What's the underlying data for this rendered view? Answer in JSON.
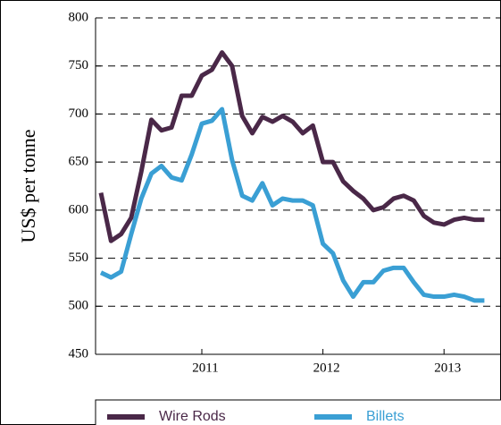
{
  "chart_data": {
    "type": "line",
    "y_label": "US$ per tonne",
    "categories": [
      null,
      null,
      null,
      null,
      null,
      null,
      null,
      null,
      null,
      null,
      "2011",
      null,
      null,
      null,
      null,
      null,
      null,
      null,
      null,
      null,
      null,
      null,
      "2012",
      null,
      null,
      null,
      null,
      null,
      null,
      null,
      null,
      null,
      null,
      null,
      "2013",
      null,
      null,
      null,
      null
    ],
    "series": [
      {
        "name": "Wire Rods",
        "color": "#4a2848",
        "values": [
          618,
          568,
          575,
          592,
          640,
          694,
          683,
          686,
          719,
          719,
          740,
          746,
          764,
          750,
          698,
          680,
          697,
          692,
          698,
          692,
          680,
          688,
          650,
          650,
          630,
          620,
          612,
          600,
          603,
          612,
          615,
          610,
          594,
          587,
          585,
          590,
          592,
          590,
          590
        ]
      },
      {
        "name": "Billets",
        "color": "#3a9fd4",
        "values": [
          535,
          530,
          536,
          575,
          612,
          638,
          646,
          634,
          631,
          658,
          690,
          693,
          705,
          652,
          615,
          610,
          628,
          605,
          612,
          610,
          610,
          605,
          565,
          555,
          527,
          510,
          525,
          525,
          537,
          540,
          540,
          525,
          512,
          510,
          510,
          512,
          510,
          506,
          506
        ]
      }
    ],
    "ylim": [
      450,
      800
    ],
    "yticks": [
      450,
      500,
      550,
      600,
      650,
      700,
      750,
      800
    ],
    "grid": true
  }
}
